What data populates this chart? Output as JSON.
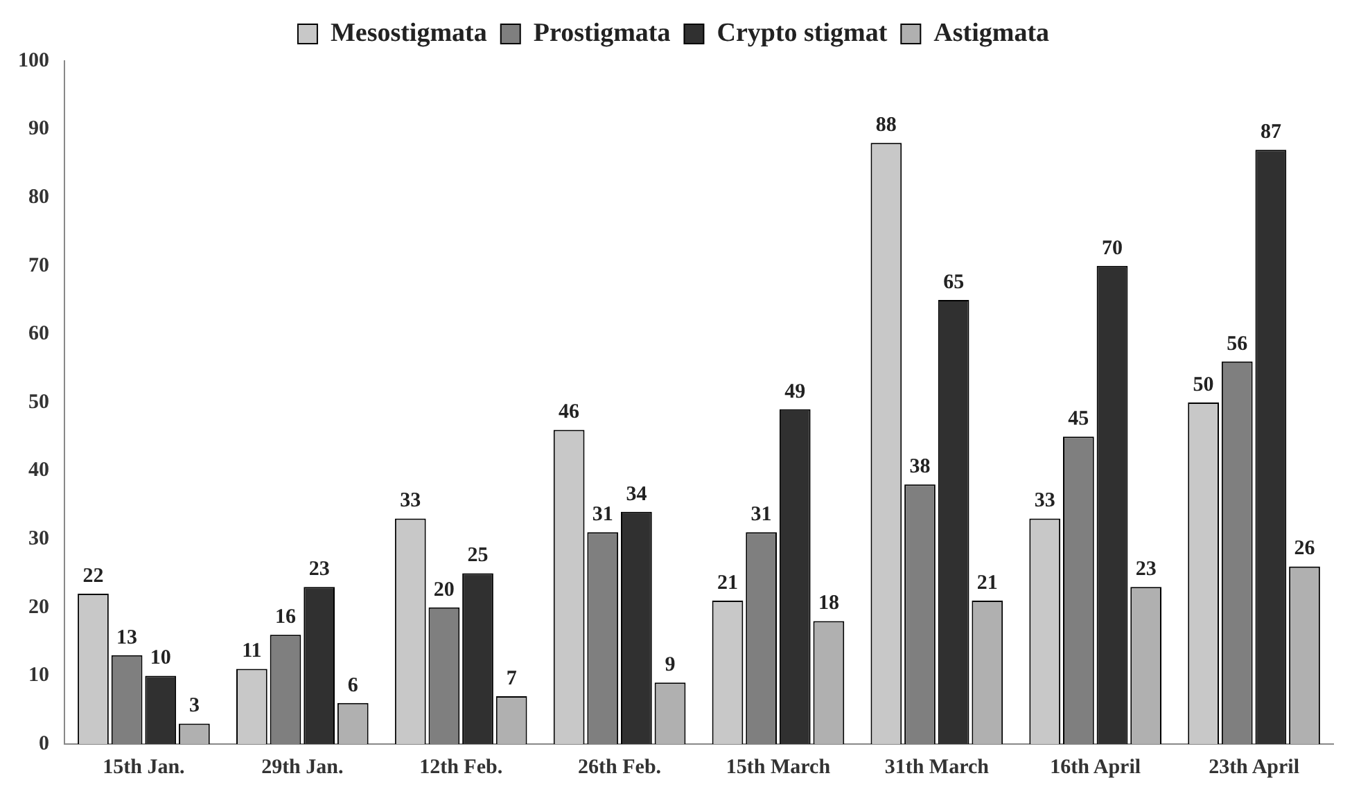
{
  "chart_data": {
    "type": "bar",
    "categories": [
      "15th Jan.",
      "29th Jan.",
      "12th Feb.",
      "26th Feb.",
      "15th March",
      "31th March",
      "16th April",
      "23th April"
    ],
    "series": [
      {
        "name": "Mesostigmata",
        "color": "#c8c8c8",
        "values": [
          22,
          11,
          33,
          46,
          21,
          88,
          33,
          50
        ]
      },
      {
        "name": "Prostigmata",
        "color": "#7f7f7f",
        "values": [
          13,
          16,
          20,
          31,
          31,
          38,
          45,
          56
        ]
      },
      {
        "name": "Crypto stigmat",
        "color": "#303030",
        "values": [
          10,
          23,
          25,
          34,
          49,
          65,
          70,
          87
        ]
      },
      {
        "name": "Astigmata",
        "color": "#b0b0b0",
        "values": [
          3,
          6,
          7,
          9,
          18,
          21,
          23,
          26
        ]
      }
    ],
    "ylim": [
      0,
      100
    ],
    "yticks": [
      0,
      10,
      20,
      30,
      40,
      50,
      60,
      70,
      80,
      90,
      100
    ],
    "grid": false,
    "legend": "top",
    "data_labels": true
  }
}
